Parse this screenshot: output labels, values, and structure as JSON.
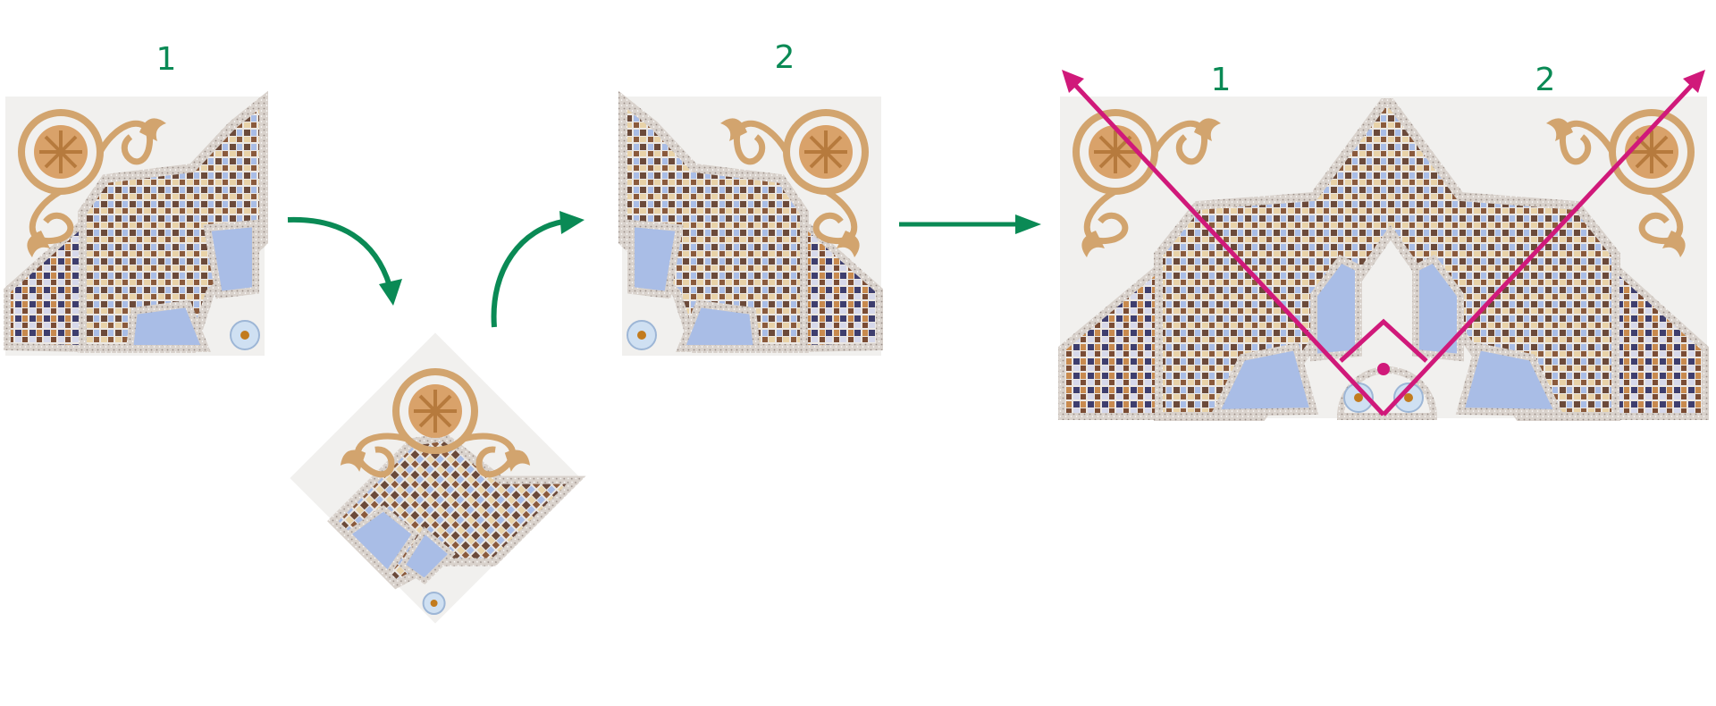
{
  "labels": {
    "tile_one": "1",
    "tile_two": "2",
    "combined_left": "1",
    "combined_right": "2"
  },
  "colors": {
    "label_green": "#0a8a55",
    "arrow_green": "#0a8a55",
    "mirror_magenta": "#d0197a",
    "glass_blue": "#a9bde6",
    "marble_white": "#f1f0ee",
    "ornament_gold": "#d2a46e",
    "ornament_brown": "#b67a3d",
    "speckle_border": "#c8c0bb"
  },
  "icons": {
    "rotate_step_arrow": "curved-arrow-down-icon",
    "rotate_back_arrow": "curved-arrow-up-icon",
    "combine_arrow": "straight-arrow-right-icon",
    "reflection_arrows": "arrow-up-left-and-up-right-icon",
    "center_point": "dot-icon"
  }
}
